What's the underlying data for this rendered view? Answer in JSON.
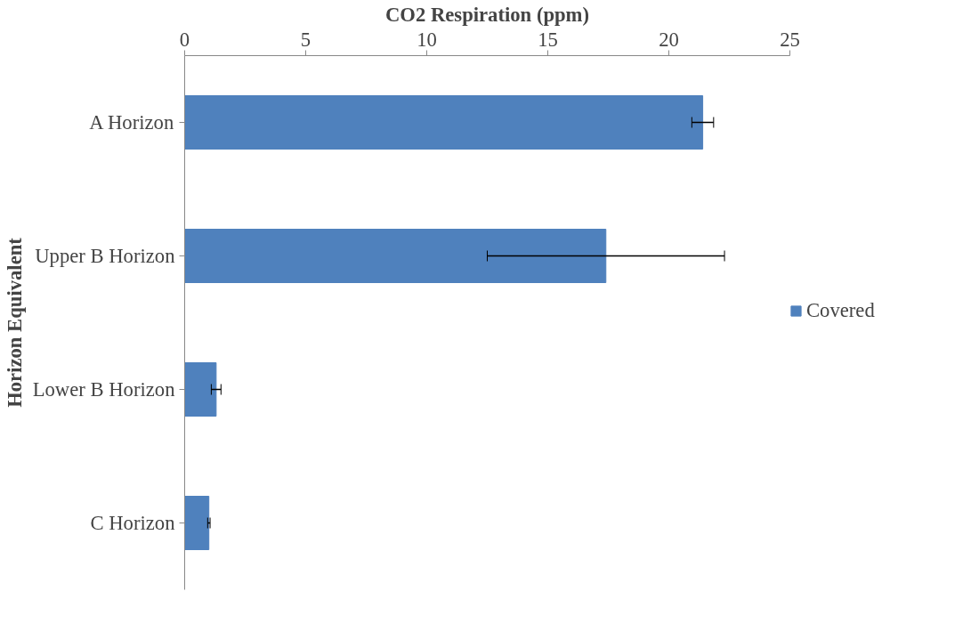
{
  "chart_data": {
    "type": "bar",
    "orientation": "horizontal",
    "xlabel": "CO2 Respiration (ppm)",
    "ylabel": "Horizon Equivalent",
    "categories": [
      "A Horizon",
      "Upper B Horizon",
      "Lower B Horizon",
      "C Horizon"
    ],
    "series": [
      {
        "name": "Covered",
        "color": "#4f81bd",
        "values": [
          21.4,
          17.4,
          1.3,
          1.0
        ],
        "errors": [
          0.45,
          4.9,
          0.2,
          0.05
        ]
      }
    ],
    "xlim": [
      0,
      25
    ],
    "xticks": [
      0,
      5,
      10,
      15,
      20,
      25
    ],
    "grid": false,
    "legend": "right"
  }
}
